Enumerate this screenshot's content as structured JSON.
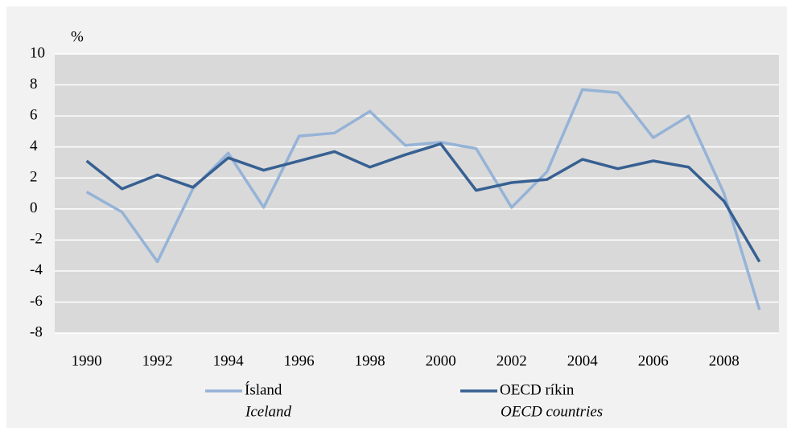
{
  "chart_data": {
    "type": "line",
    "y_label": "%",
    "x": [
      1990,
      1991,
      1992,
      1993,
      1994,
      1995,
      1996,
      1997,
      1998,
      1999,
      2000,
      2001,
      2002,
      2003,
      2004,
      2005,
      2006,
      2007,
      2008,
      2009
    ],
    "series": [
      {
        "name": "Ísland",
        "name_en": "Iceland",
        "color": "#95b3d7",
        "values": [
          1.1,
          -0.2,
          -3.4,
          1.3,
          3.6,
          0.1,
          4.7,
          4.9,
          6.3,
          4.1,
          4.3,
          3.9,
          0.1,
          2.4,
          7.7,
          7.5,
          4.6,
          6.0,
          1.0,
          -6.5
        ]
      },
      {
        "name": "OECD ríkin",
        "name_en": "OECD countries",
        "color": "#376092",
        "values": [
          3.1,
          1.3,
          2.2,
          1.4,
          3.3,
          2.5,
          3.1,
          3.7,
          2.7,
          3.5,
          4.2,
          1.2,
          1.7,
          1.9,
          3.2,
          2.6,
          3.1,
          2.7,
          0.5,
          -3.4
        ]
      }
    ],
    "xlim": [
      1989.1,
      2009.55
    ],
    "xticks": [
      1990,
      1992,
      1994,
      1996,
      1998,
      2000,
      2002,
      2004,
      2006,
      2008
    ],
    "ylim": [
      -8,
      10
    ],
    "yticks": [
      -8,
      -6,
      -4,
      -2,
      0,
      2,
      4,
      6,
      8,
      10
    ],
    "grid": true,
    "legend": "bottom"
  }
}
